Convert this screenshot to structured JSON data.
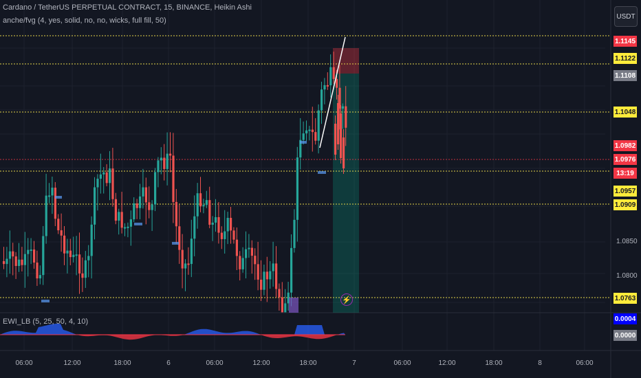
{
  "header": {
    "title": "Cardano / TetherUS PERPETUAL CONTRACT, 15, BINANCE, Heikin Ashi",
    "indicator": "anche/fvg (4, yes, solid, no, no, wicks, full fill, 50)",
    "currency": "USDT"
  },
  "oscillator": {
    "label": "EWI_LB (5, 25, 50, 4, 10)",
    "labels": [
      {
        "text": "0.0004",
        "bg": "#0000ff",
        "fg": "#ffffff"
      },
      {
        "text": "0.0000",
        "bg": "#787b86",
        "fg": "#ffffff"
      }
    ]
  },
  "price_scale": {
    "labels": [
      {
        "text": "1.1145",
        "bg": "#f23645",
        "fg": "#ffffff"
      },
      {
        "text": "1.1122",
        "bg": "#ffeb3b",
        "fg": "#131722"
      },
      {
        "text": "1.1108",
        "bg": "#787b86",
        "fg": "#ffffff"
      },
      {
        "text": "1.1048",
        "bg": "#ffeb3b",
        "fg": "#131722"
      },
      {
        "text": "1.0982",
        "bg": "#f23645",
        "fg": "#ffffff"
      },
      {
        "text": "1.0976",
        "bg": "#f23645",
        "fg": "#ffffff"
      },
      {
        "text": "13:19",
        "bg": "#f23645",
        "fg": "#ffffff"
      },
      {
        "text": "1.0957",
        "bg": "#ffeb3b",
        "fg": "#131722"
      },
      {
        "text": "1.0909",
        "bg": "#ffeb3b",
        "fg": "#131722"
      },
      {
        "text": "1.0763",
        "bg": "#ffeb3b",
        "fg": "#131722"
      }
    ],
    "plain": [
      "1.0850",
      "1.0800"
    ]
  },
  "time_axis": [
    "06:00",
    "12:00",
    "18:00",
    "6",
    "06:00",
    "12:00",
    "18:00",
    "7",
    "06:00",
    "12:00",
    "18:00",
    "8",
    "06:00"
  ],
  "colors": {
    "up": "#26a69a",
    "down": "#ef5350",
    "level": "#e5d44a",
    "background": "#131722"
  },
  "icons": {
    "alert": "flash-icon"
  }
}
